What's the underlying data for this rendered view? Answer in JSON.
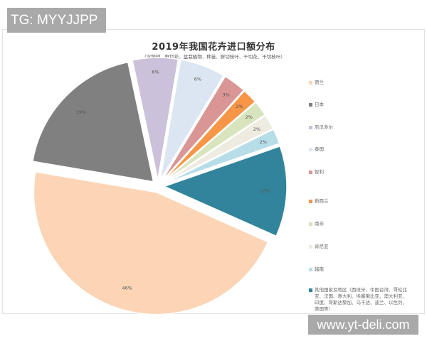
{
  "watermarks": {
    "top": "TG: MYYJJPP",
    "bottom": "www.yt-deli.com"
  },
  "chart_data": {
    "type": "pie",
    "title": "2019年我国花卉进口额分布",
    "subtitle": "（含种球、鲜切花、盆栽植物、种苗、鲜切枝叶、干切花、干切枝叶）",
    "start_angle_deg": 114,
    "exploded": true,
    "legend_position": "right",
    "categories": [
      "荷兰",
      "日本",
      "厄瓜多尔",
      "泰国",
      "智利",
      "新西兰",
      "南非",
      "肯尼亚",
      "越南",
      "其他国家及地区（西班牙、中国台湾、哥伦比亚、法国、意大利、埃塞俄比亚、澳大利亚、印度、哥斯达黎加、乌干达、波兰、以色列、美国等）"
    ],
    "values": [
      46,
      19,
      6,
      6,
      3,
      2,
      2,
      2,
      2,
      12
    ],
    "labels": [
      "46%",
      "19%",
      "6%",
      "6%",
      "3%",
      "2%",
      "2%",
      "2%",
      "2%",
      "12%"
    ],
    "colors": [
      "#fbd5b5",
      "#808080",
      "#ccc1da",
      "#dce6f2",
      "#d99694",
      "#f79646",
      "#d7e4bd",
      "#eeece1",
      "#b7dde8",
      "#31849b"
    ]
  },
  "legend": {
    "items": [
      {
        "label": "荷兰",
        "color": "#fbd5b5"
      },
      {
        "label": "日本",
        "color": "#808080"
      },
      {
        "label": "厄瓜多尔",
        "color": "#ccc1da"
      },
      {
        "label": "泰国",
        "color": "#dce6f2"
      },
      {
        "label": "智利",
        "color": "#d99694"
      },
      {
        "label": "新西兰",
        "color": "#f79646"
      },
      {
        "label": "南非",
        "color": "#d7e4bd"
      },
      {
        "label": "肯尼亚",
        "color": "#eeece1"
      },
      {
        "label": "越南",
        "color": "#b7dde8"
      },
      {
        "label": "其他国家及地区（西班牙、中国台湾、哥伦比亚、法国、意大利、埃塞俄比亚、澳大利亚、印度、哥斯达黎加、乌干达、波兰、以色列、美国等）",
        "color": "#31849b"
      }
    ]
  }
}
